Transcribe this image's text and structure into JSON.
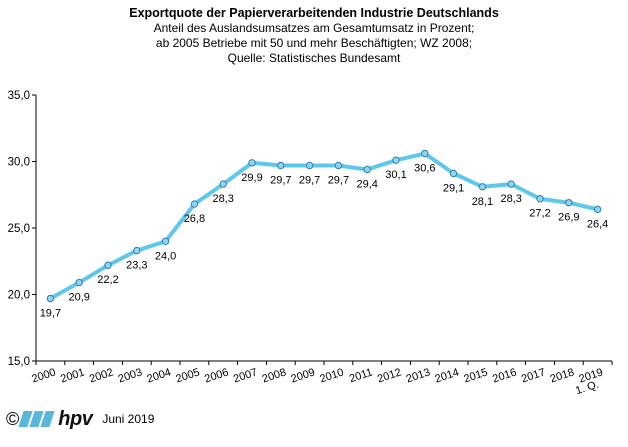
{
  "chart_data": {
    "type": "line",
    "title": "Exportquote der Papierverarbeitenden Industrie Deutschlands",
    "subtitle_lines": [
      "Anteil des Auslandsumsatzes am Gesamtumsatz in Prozent;",
      "ab 2005 Betriebe mit 50 und mehr Beschäftigten; WZ 2008;",
      "Quelle: Statistisches Bundesamt"
    ],
    "categories": [
      "2000",
      "2001",
      "2002",
      "2003",
      "2004",
      "2005",
      "2006",
      "2007",
      "2008",
      "2009",
      "2010",
      "2011",
      "2012",
      "2013",
      "2014",
      "2015",
      "2016",
      "2017",
      "2018",
      "2019"
    ],
    "category_sublabels": [
      "",
      "",
      "",
      "",
      "",
      "",
      "",
      "",
      "",
      "",
      "",
      "",
      "",
      "",
      "",
      "",
      "",
      "",
      "",
      "1. Q."
    ],
    "values": [
      19.7,
      20.9,
      22.2,
      23.3,
      24.0,
      26.8,
      28.3,
      29.9,
      29.7,
      29.7,
      29.7,
      29.4,
      30.1,
      30.6,
      29.1,
      28.1,
      28.3,
      27.2,
      26.9,
      26.4
    ],
    "value_labels": [
      "19,7",
      "20,9",
      "22,2",
      "23,3",
      "24,0",
      "26,8",
      "28,3",
      "29,9",
      "29,7",
      "29,7",
      "29,7",
      "29,4",
      "30,1",
      "30,6",
      "29,1",
      "28,1",
      "28,3",
      "27,2",
      "26,9",
      "26,4"
    ],
    "label_position": [
      "below",
      "below",
      "below",
      "below",
      "below",
      "below",
      "below",
      "below",
      "below",
      "below",
      "below",
      "below",
      "below",
      "below",
      "below",
      "below",
      "below",
      "below",
      "below",
      "below"
    ],
    "ylim": [
      15,
      35
    ],
    "yticks": [
      15,
      20,
      25,
      30,
      35
    ],
    "ytick_labels": [
      "15,0",
      "20,0",
      "25,0",
      "30,0",
      "35,0"
    ],
    "grid": false,
    "legend": "none",
    "colors": {
      "line": "#5ec8ec",
      "marker_fill": "#8fd4f0",
      "marker_stroke": "#2f7fb3",
      "axis": "#000000"
    }
  },
  "footer": {
    "copyright_symbol": "©",
    "logo_text": "hpv",
    "date_text": "Juni 2019"
  }
}
